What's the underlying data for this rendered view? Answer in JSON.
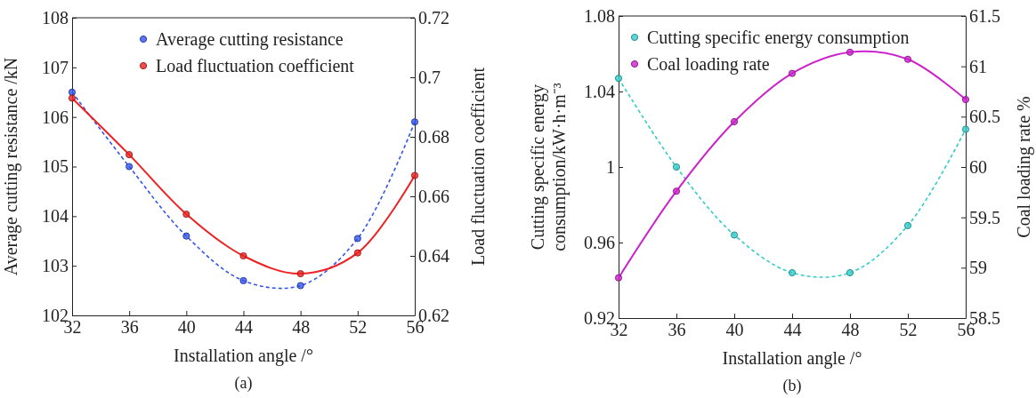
{
  "chart_data": [
    {
      "type": "line",
      "xlabel": "Installation angle /°",
      "ylabel": "Average cutting resistance /kN",
      "y2label": "Load fluctuation coefficient",
      "annotations": [
        "(a)"
      ],
      "x": [
        32,
        36,
        40,
        44,
        48,
        52,
        56
      ],
      "xlim": [
        32,
        56
      ],
      "xticks": [
        32,
        36,
        40,
        44,
        48,
        52,
        56
      ],
      "ylim": [
        102,
        108
      ],
      "yticks": [
        102,
        103,
        104,
        105,
        106,
        107,
        108
      ],
      "y2lim": [
        0.62,
        0.72
      ],
      "y2ticks": [
        0.62,
        0.64,
        0.66,
        0.68,
        0.7,
        0.72
      ],
      "marker": "circle",
      "legend": "top",
      "grid": false,
      "series": [
        {
          "name": "Average cutting resistance",
          "color": "#3355ee",
          "line_style": "dashed",
          "values": [
            106.5,
            105.0,
            103.6,
            102.7,
            102.6,
            103.55,
            105.9
          ]
        },
        {
          "name": "Load fluctuation coefficient",
          "color": "#ee2222",
          "line_style": "solid",
          "axis": "y2",
          "values": [
            0.693,
            0.674,
            0.654,
            0.64,
            0.634,
            0.641,
            0.667
          ]
        }
      ]
    },
    {
      "type": "line",
      "xlabel": "Installation angle /°",
      "ylabel": "Cutting specific energy consumption/kW·h·m⁻³",
      "y2label": "Coal loading rate %",
      "annotations": [
        "(b)"
      ],
      "x": [
        32,
        36,
        40,
        44,
        48,
        52,
        56
      ],
      "xlim": [
        32,
        56
      ],
      "xticks": [
        32,
        36,
        40,
        44,
        48,
        52,
        56
      ],
      "ylim": [
        0.92,
        1.08
      ],
      "yticks": [
        0.92,
        0.96,
        1,
        1.04,
        1.08
      ],
      "y2lim": [
        58.5,
        61.5
      ],
      "y2ticks": [
        58.5,
        59,
        59.5,
        60,
        60.5,
        61,
        61.5
      ],
      "marker": "circle",
      "legend": "top left",
      "grid": false,
      "series": [
        {
          "name": "Cutting specific energy consumption",
          "color": "#33cccc",
          "line_style": "dashed",
          "values": [
            1.047,
            1.0,
            0.964,
            0.944,
            0.944,
            0.969,
            1.02
          ]
        },
        {
          "name": "Coal loading rate",
          "color": "#cc22cc",
          "line_style": "solid",
          "axis": "y2",
          "values": [
            58.9,
            59.76,
            60.45,
            60.93,
            61.14,
            61.07,
            60.67
          ]
        }
      ]
    }
  ]
}
